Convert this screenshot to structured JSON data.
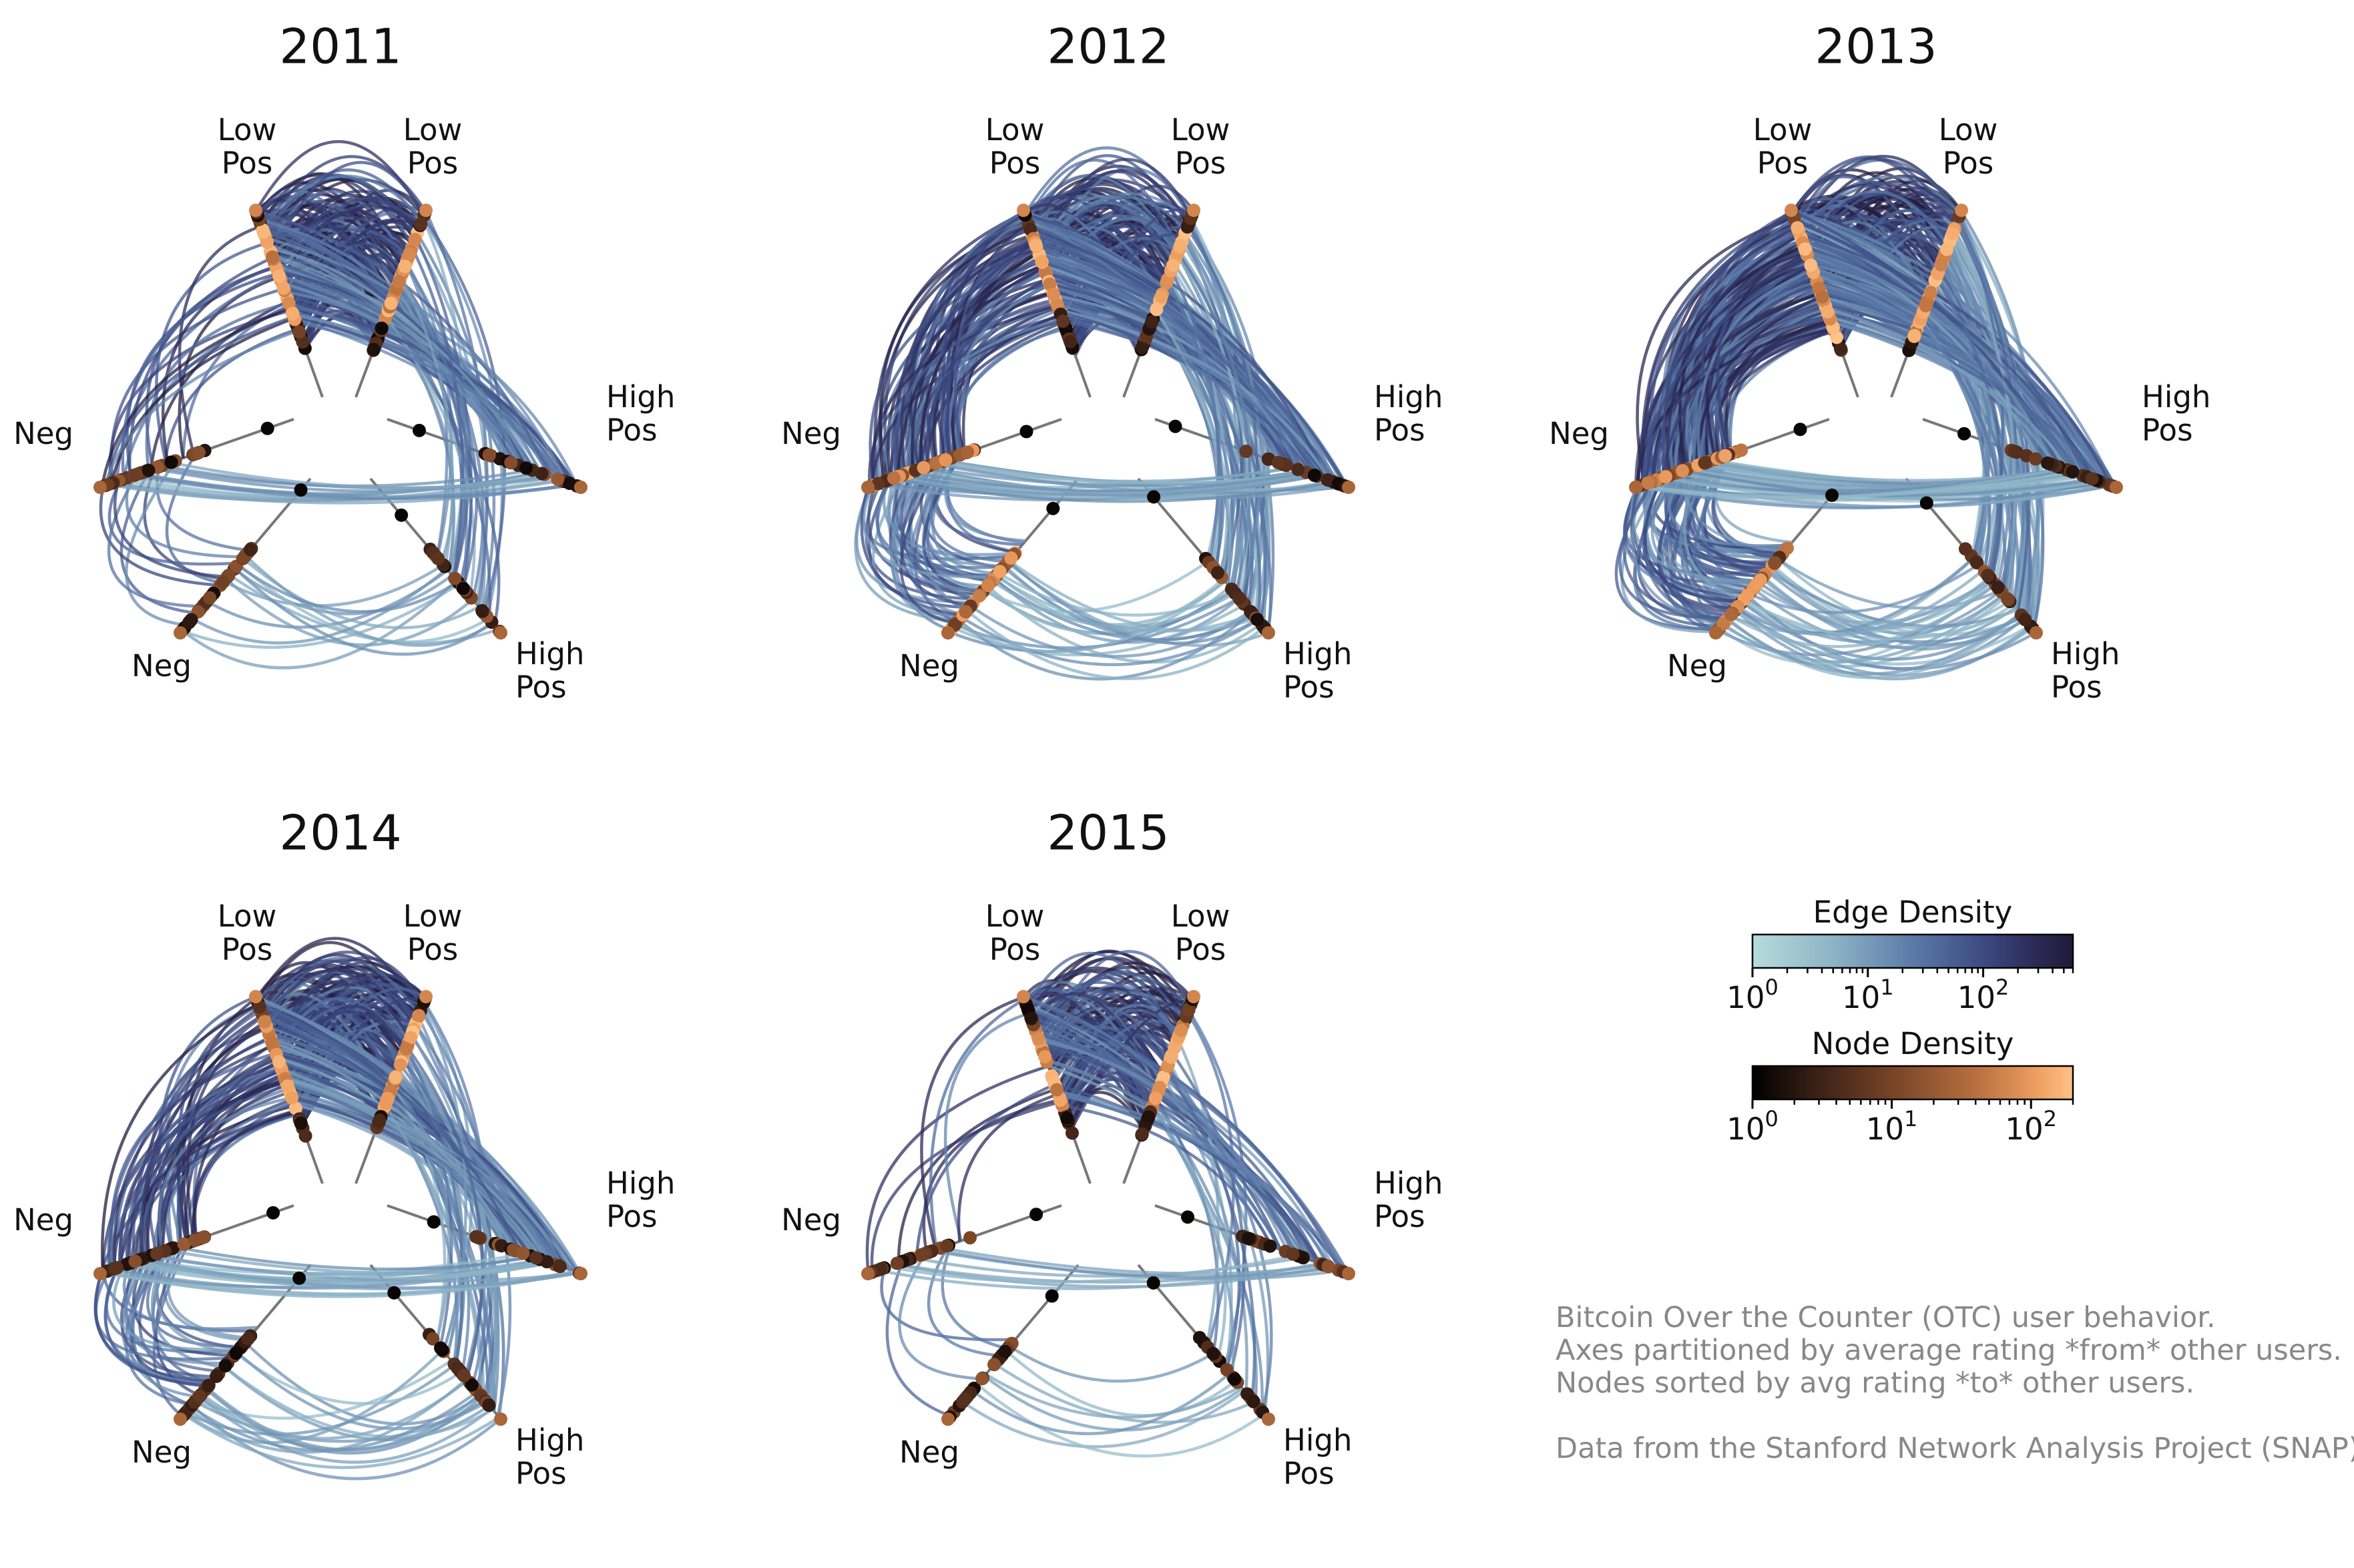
{
  "chart_data": {
    "type": "hive-plot",
    "panels": [
      {
        "title": "2011"
      },
      {
        "title": "2012"
      },
      {
        "title": "2013"
      },
      {
        "title": "2014"
      },
      {
        "title": "2015"
      }
    ],
    "axis_labels": {
      "neg": "Neg",
      "low_pos": [
        "Low",
        "Pos"
      ],
      "high_pos": [
        "High",
        "Pos"
      ]
    },
    "colorbars": [
      {
        "title": "Edge Density",
        "scale": "log",
        "range": [
          1,
          600
        ],
        "ticks": [
          {
            "base": "10",
            "exp": "0"
          },
          {
            "base": "10",
            "exp": "1"
          },
          {
            "base": "10",
            "exp": "2"
          }
        ],
        "colormap": [
          "#b6dcdc",
          "#8db4c6",
          "#5b7aa8",
          "#3c4a82",
          "#2c2a57",
          "#201a38"
        ]
      },
      {
        "title": "Node Density",
        "scale": "log",
        "range": [
          1,
          200
        ],
        "ticks": [
          {
            "base": "10",
            "exp": "0"
          },
          {
            "base": "10",
            "exp": "1"
          },
          {
            "base": "10",
            "exp": "2"
          }
        ],
        "colormap": [
          "#000000",
          "#3a2016",
          "#7a4628",
          "#b8703f",
          "#ec9c5e",
          "#ffc287"
        ]
      }
    ]
  },
  "annotation": {
    "lines": [
      "Bitcoin Over the Counter (OTC) user behavior.",
      "Axes partitioned by average rating *from* other users.",
      "Nodes sorted by avg rating *to* other users.",
      "Data from the Stanford Network Analysis Project (SNAP)."
    ]
  }
}
